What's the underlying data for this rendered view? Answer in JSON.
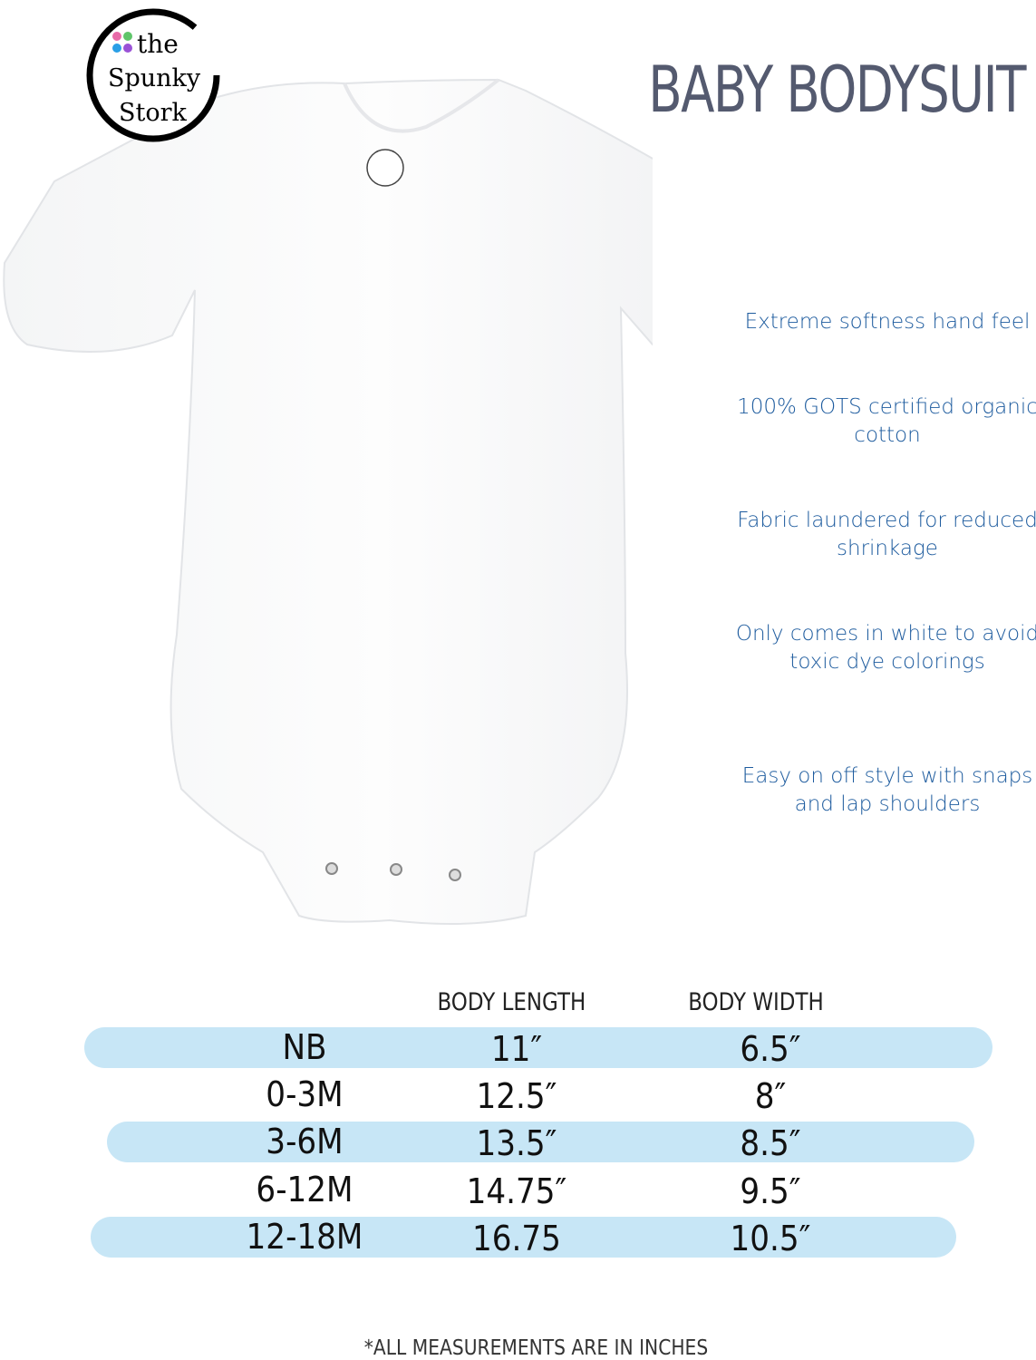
{
  "brand": {
    "logo_text": "the Spunky Stork",
    "dot_colors": [
      "#e86aa8",
      "#5fc56a",
      "#2a9fe6",
      "#9a52d6"
    ]
  },
  "title": "BABY BODYSUIT",
  "features": [
    {
      "line1": "Extreme softness hand feel",
      "line2": ""
    },
    {
      "line1": "100% GOTS certified organic",
      "line2": "cotton"
    },
    {
      "line1": "Fabric laundered for reduced",
      "line2": "shrinkage"
    },
    {
      "line1": "Only comes in white to avoid",
      "line2": "toxic dye colorings"
    },
    {
      "line1": "Easy on off style with snaps",
      "line2": "and lap shoulders"
    }
  ],
  "size_chart": {
    "headers": [
      "BODY LENGTH",
      "BODY WIDTH"
    ],
    "rows": [
      {
        "size": "NB",
        "length": "11″",
        "width": "6.5″"
      },
      {
        "size": "0-3M",
        "length": "12.5″",
        "width": "8″"
      },
      {
        "size": "3-6M",
        "length": "13.5″",
        "width": "8.5″"
      },
      {
        "size": "6-12M",
        "length": "14.75″",
        "width": "9.5″"
      },
      {
        "size": "12-18M",
        "length": "16.75",
        "width": "10.5″"
      }
    ],
    "band_color": "#c7e6f6"
  },
  "footnote": "*ALL MEASUREMENTS ARE IN INCHES"
}
